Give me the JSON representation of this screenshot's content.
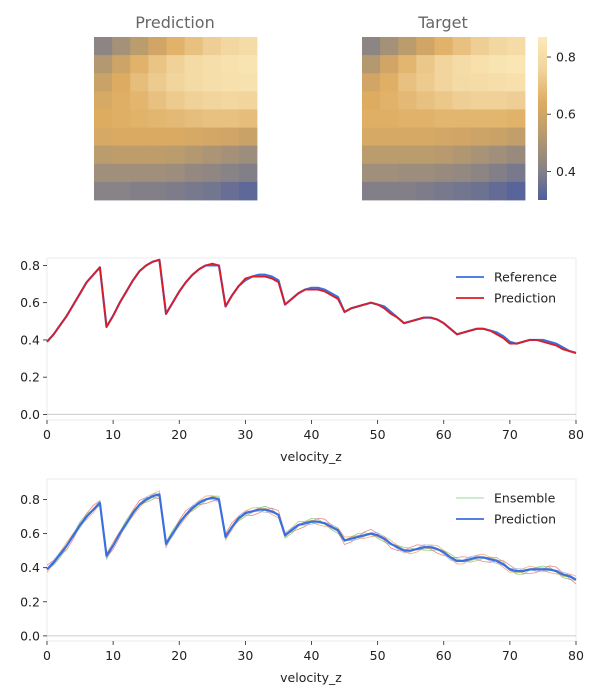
{
  "colors": {
    "reference": "#3a6fe0",
    "prediction_line": "#dd1c24",
    "ensemble": [
      "#7fc67a",
      "#e8756a",
      "#9bb0e8",
      "#f0a060",
      "#c9b34a"
    ],
    "colormap": [
      "#4f5f9f",
      "#8a8485",
      "#b79a6e",
      "#deac61",
      "#f1d49c",
      "#fbeab9"
    ]
  },
  "chart_data": [
    {
      "type": "heatmap",
      "title": "Prediction",
      "rows": 9,
      "cols": 9,
      "values": [
        [
          0.42,
          0.48,
          0.54,
          0.6,
          0.66,
          0.7,
          0.74,
          0.77,
          0.8
        ],
        [
          0.52,
          0.59,
          0.66,
          0.71,
          0.75,
          0.79,
          0.81,
          0.83,
          0.84
        ],
        [
          0.58,
          0.64,
          0.69,
          0.73,
          0.76,
          0.79,
          0.81,
          0.82,
          0.83
        ],
        [
          0.62,
          0.65,
          0.67,
          0.7,
          0.73,
          0.75,
          0.76,
          0.77,
          0.76
        ],
        [
          0.64,
          0.65,
          0.66,
          0.67,
          0.68,
          0.69,
          0.7,
          0.7,
          0.69
        ],
        [
          0.62,
          0.63,
          0.63,
          0.63,
          0.63,
          0.62,
          0.61,
          0.6,
          0.58
        ],
        [
          0.54,
          0.55,
          0.55,
          0.55,
          0.54,
          0.52,
          0.5,
          0.48,
          0.46
        ],
        [
          0.47,
          0.47,
          0.47,
          0.47,
          0.46,
          0.44,
          0.43,
          0.41,
          0.4
        ],
        [
          0.41,
          0.41,
          0.4,
          0.4,
          0.39,
          0.38,
          0.37,
          0.35,
          0.33
        ]
      ]
    },
    {
      "type": "heatmap",
      "title": "Target",
      "rows": 9,
      "cols": 9,
      "values": [
        [
          0.42,
          0.48,
          0.54,
          0.6,
          0.66,
          0.7,
          0.74,
          0.77,
          0.8
        ],
        [
          0.52,
          0.6,
          0.67,
          0.72,
          0.76,
          0.8,
          0.82,
          0.84,
          0.85
        ],
        [
          0.6,
          0.65,
          0.7,
          0.73,
          0.76,
          0.79,
          0.8,
          0.81,
          0.82
        ],
        [
          0.64,
          0.66,
          0.68,
          0.7,
          0.72,
          0.74,
          0.75,
          0.75,
          0.74
        ],
        [
          0.65,
          0.65,
          0.66,
          0.66,
          0.67,
          0.67,
          0.67,
          0.67,
          0.66
        ],
        [
          0.62,
          0.62,
          0.62,
          0.62,
          0.61,
          0.6,
          0.59,
          0.58,
          0.56
        ],
        [
          0.54,
          0.54,
          0.54,
          0.54,
          0.53,
          0.51,
          0.49,
          0.47,
          0.45
        ],
        [
          0.47,
          0.47,
          0.46,
          0.46,
          0.45,
          0.44,
          0.42,
          0.4,
          0.38
        ],
        [
          0.4,
          0.4,
          0.4,
          0.39,
          0.38,
          0.37,
          0.36,
          0.34,
          0.32
        ]
      ],
      "colorbar": {
        "min": 0.3,
        "max": 0.87,
        "ticks": [
          "0.4",
          "0.6",
          "0.8"
        ],
        "tick_values": [
          0.4,
          0.6,
          0.8
        ]
      }
    },
    {
      "type": "line",
      "xlabel": "velocity_z",
      "xlim": [
        0,
        80
      ],
      "ylim": [
        -0.03,
        0.84
      ],
      "xticks": [
        "0",
        "10",
        "20",
        "30",
        "40",
        "50",
        "60",
        "70",
        "80"
      ],
      "yticks": [
        "0.0",
        "0.2",
        "0.4",
        "0.6",
        "0.8"
      ],
      "legend_position": "top-right",
      "x": [
        0,
        1,
        2,
        3,
        4,
        5,
        6,
        7,
        8,
        9,
        10,
        11,
        12,
        13,
        14,
        15,
        16,
        17,
        18,
        19,
        20,
        21,
        22,
        23,
        24,
        25,
        26,
        27,
        28,
        29,
        30,
        31,
        32,
        33,
        34,
        35,
        36,
        37,
        38,
        39,
        40,
        41,
        42,
        43,
        44,
        45,
        46,
        47,
        48,
        49,
        50,
        51,
        52,
        53,
        54,
        55,
        56,
        57,
        58,
        59,
        60,
        61,
        62,
        63,
        64,
        65,
        66,
        67,
        68,
        69,
        70,
        71,
        72,
        73,
        74,
        75,
        76,
        77,
        78,
        79,
        80
      ],
      "series": [
        {
          "name": "Reference",
          "role": "reference",
          "values": [
            0.39,
            0.43,
            0.48,
            0.53,
            0.59,
            0.65,
            0.71,
            0.75,
            0.79,
            0.47,
            0.53,
            0.6,
            0.66,
            0.72,
            0.77,
            0.8,
            0.82,
            0.83,
            0.54,
            0.6,
            0.66,
            0.71,
            0.75,
            0.78,
            0.8,
            0.8,
            0.8,
            0.58,
            0.64,
            0.69,
            0.72,
            0.74,
            0.75,
            0.75,
            0.74,
            0.72,
            0.59,
            0.62,
            0.65,
            0.67,
            0.68,
            0.68,
            0.67,
            0.65,
            0.63,
            0.55,
            0.57,
            0.58,
            0.59,
            0.6,
            0.59,
            0.58,
            0.55,
            0.52,
            0.49,
            0.5,
            0.51,
            0.52,
            0.52,
            0.51,
            0.49,
            0.46,
            0.43,
            0.44,
            0.45,
            0.46,
            0.46,
            0.45,
            0.44,
            0.42,
            0.39,
            0.38,
            0.39,
            0.4,
            0.4,
            0.4,
            0.39,
            0.38,
            0.36,
            0.34,
            0.33
          ]
        },
        {
          "name": "Prediction",
          "role": "prediction",
          "values": [
            0.39,
            0.43,
            0.48,
            0.53,
            0.59,
            0.65,
            0.71,
            0.75,
            0.79,
            0.47,
            0.53,
            0.6,
            0.66,
            0.72,
            0.77,
            0.8,
            0.82,
            0.83,
            0.54,
            0.6,
            0.66,
            0.71,
            0.75,
            0.78,
            0.8,
            0.81,
            0.8,
            0.58,
            0.64,
            0.69,
            0.73,
            0.74,
            0.74,
            0.74,
            0.73,
            0.71,
            0.59,
            0.62,
            0.65,
            0.67,
            0.67,
            0.67,
            0.66,
            0.64,
            0.62,
            0.55,
            0.57,
            0.58,
            0.59,
            0.6,
            0.59,
            0.57,
            0.54,
            0.52,
            0.49,
            0.5,
            0.51,
            0.52,
            0.52,
            0.51,
            0.49,
            0.46,
            0.43,
            0.44,
            0.45,
            0.46,
            0.46,
            0.45,
            0.43,
            0.41,
            0.38,
            0.38,
            0.39,
            0.4,
            0.4,
            0.39,
            0.38,
            0.37,
            0.35,
            0.34,
            0.33
          ]
        }
      ]
    },
    {
      "type": "line",
      "xlabel": "velocity_z",
      "xlim": [
        0,
        80
      ],
      "ylim": [
        -0.03,
        0.92
      ],
      "xticks": [
        "0",
        "10",
        "20",
        "30",
        "40",
        "50",
        "60",
        "70",
        "80"
      ],
      "yticks": [
        "0.0",
        "0.2",
        "0.4",
        "0.6",
        "0.8"
      ],
      "legend_position": "top-right",
      "legend": [
        "Ensemble",
        "Prediction"
      ],
      "ensemble_members": 5,
      "ensemble_spread": [
        -0.02,
        0.025,
        -0.015,
        0.02,
        -0.01
      ],
      "x": [
        0,
        1,
        2,
        3,
        4,
        5,
        6,
        7,
        8,
        9,
        10,
        11,
        12,
        13,
        14,
        15,
        16,
        17,
        18,
        19,
        20,
        21,
        22,
        23,
        24,
        25,
        26,
        27,
        28,
        29,
        30,
        31,
        32,
        33,
        34,
        35,
        36,
        37,
        38,
        39,
        40,
        41,
        42,
        43,
        44,
        45,
        46,
        47,
        48,
        49,
        50,
        51,
        52,
        53,
        54,
        55,
        56,
        57,
        58,
        59,
        60,
        61,
        62,
        63,
        64,
        65,
        66,
        67,
        68,
        69,
        70,
        71,
        72,
        73,
        74,
        75,
        76,
        77,
        78,
        79,
        80
      ],
      "series": [
        {
          "name": "Prediction",
          "role": "reference",
          "values": [
            0.39,
            0.43,
            0.48,
            0.53,
            0.59,
            0.65,
            0.7,
            0.74,
            0.78,
            0.47,
            0.53,
            0.6,
            0.66,
            0.72,
            0.77,
            0.8,
            0.82,
            0.83,
            0.54,
            0.6,
            0.66,
            0.71,
            0.75,
            0.78,
            0.8,
            0.81,
            0.8,
            0.58,
            0.64,
            0.69,
            0.72,
            0.73,
            0.74,
            0.74,
            0.73,
            0.71,
            0.59,
            0.62,
            0.65,
            0.66,
            0.67,
            0.67,
            0.66,
            0.64,
            0.62,
            0.56,
            0.57,
            0.58,
            0.59,
            0.6,
            0.59,
            0.57,
            0.54,
            0.52,
            0.5,
            0.5,
            0.51,
            0.52,
            0.52,
            0.51,
            0.49,
            0.46,
            0.44,
            0.44,
            0.45,
            0.46,
            0.46,
            0.45,
            0.44,
            0.42,
            0.39,
            0.38,
            0.38,
            0.39,
            0.39,
            0.39,
            0.39,
            0.38,
            0.36,
            0.35,
            0.33
          ]
        }
      ]
    }
  ]
}
